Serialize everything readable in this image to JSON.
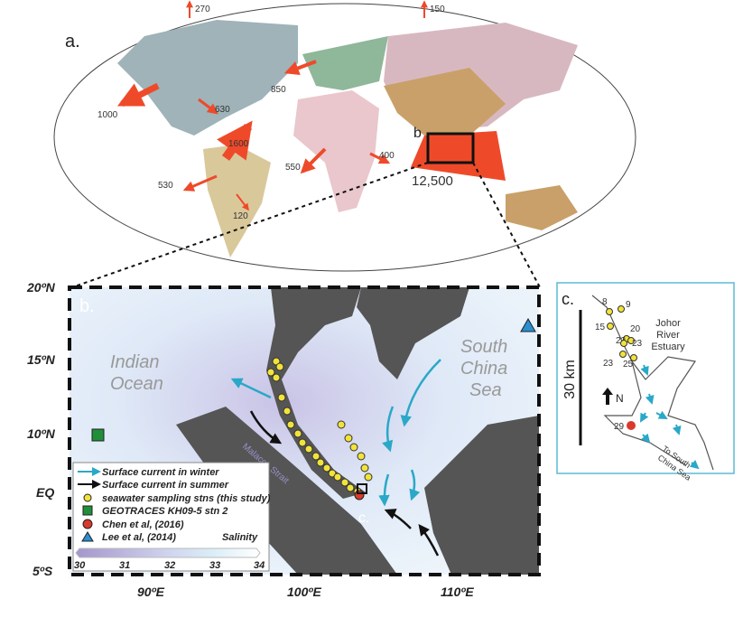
{
  "panel_a": {
    "label": "a.",
    "inset_label": "b",
    "flux_labels": [
      "270",
      "150",
      "1000",
      "630",
      "850",
      "1600",
      "550",
      "400",
      "530",
      "120",
      "12,500"
    ]
  },
  "panel_b": {
    "label": "b.",
    "sea_labels": {
      "indian_ocean": "Indian\nOcean",
      "indian_line1": "Indian",
      "indian_line2": "Ocean",
      "scs_line1": "South",
      "scs_line2": "China",
      "scs_line3": "Sea",
      "malacca": "Malacca Strait"
    },
    "inset_label": "c.",
    "lat_ticks": [
      "20ºN",
      "15ºN",
      "10ºN",
      "EQ",
      "5ºS"
    ],
    "lon_ticks": [
      "90ºE",
      "100ºE",
      "110ºE"
    ],
    "legend": {
      "items": [
        {
          "symbol": "cyan-arrow",
          "label": "Surface current in winter"
        },
        {
          "symbol": "black-arrow",
          "label": "Surface current in summer"
        },
        {
          "symbol": "yellow-circle",
          "label": "seawater sampling stns (this study)"
        },
        {
          "symbol": "green-square",
          "label": "GEOTRACES KH09-5 stn 2"
        },
        {
          "symbol": "red-circle",
          "label": "Chen et al, (2016)"
        },
        {
          "symbol": "blue-triangle",
          "label": "Lee et al, (2014)"
        }
      ],
      "colorbar_title": "Salinity",
      "colorbar_ticks": [
        "30",
        "31",
        "32",
        "33",
        "34"
      ]
    }
  },
  "panel_c": {
    "label": "c.",
    "scale_label": "30 km",
    "north_label": "N",
    "title_line1": "Johor",
    "title_line2": "River",
    "title_line3": "Estuary",
    "station_labels": [
      "8",
      "9",
      "15",
      "20",
      "23",
      "23",
      "23",
      "25",
      "29"
    ],
    "outflow_line1": "To South",
    "outflow_line2": "China Sea"
  },
  "colors": {
    "flux_arrow": "#ee4a2a",
    "winter_current": "#2aa8c8",
    "summer_current": "#111111",
    "station": "#f2e33a",
    "geotraces": "#1f8f3a",
    "chen": "#d93a2a",
    "lee": "#2a8fd0",
    "land": "#555555",
    "salinity_low": "#a99ccf",
    "salinity_high": "#ffffff"
  }
}
